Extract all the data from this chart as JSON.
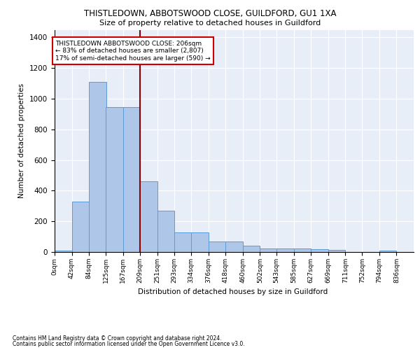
{
  "title_line1": "THISTLEDOWN, ABBOTSWOOD CLOSE, GUILDFORD, GU1 1XA",
  "title_line2": "Size of property relative to detached houses in Guildford",
  "xlabel": "Distribution of detached houses by size in Guildford",
  "ylabel": "Number of detached properties",
  "footer_line1": "Contains HM Land Registry data © Crown copyright and database right 2024.",
  "footer_line2": "Contains public sector information licensed under the Open Government Licence v3.0.",
  "annotation_line1": "THISTLEDOWN ABBOTSWOOD CLOSE: 206sqm",
  "annotation_line2": "← 83% of detached houses are smaller (2,807)",
  "annotation_line3": "17% of semi-detached houses are larger (590) →",
  "bar_values": [
    10,
    330,
    1110,
    945,
    945,
    460,
    270,
    130,
    130,
    70,
    70,
    40,
    25,
    25,
    25,
    20,
    15,
    0,
    0,
    10,
    0
  ],
  "bin_edges": [
    0,
    42,
    84,
    125,
    167,
    209,
    251,
    293,
    334,
    376,
    418,
    460,
    502,
    543,
    585,
    627,
    669,
    711,
    752,
    794,
    836
  ],
  "tick_labels": [
    "0sqm",
    "42sqm",
    "84sqm",
    "125sqm",
    "167sqm",
    "209sqm",
    "251sqm",
    "293sqm",
    "334sqm",
    "376sqm",
    "418sqm",
    "460sqm",
    "502sqm",
    "543sqm",
    "585sqm",
    "627sqm",
    "669sqm",
    "711sqm",
    "752sqm",
    "794sqm",
    "836sqm"
  ],
  "bar_color": "#aec6e8",
  "bar_edge_color": "#5b9bd5",
  "vline_color": "#8b0000",
  "vline_x": 209,
  "ylim": [
    0,
    1450
  ],
  "xlim_max": 878,
  "plot_bg_color": "#e8eef8",
  "grid_color": "#ffffff",
  "annotation_box_color": "#cc0000"
}
